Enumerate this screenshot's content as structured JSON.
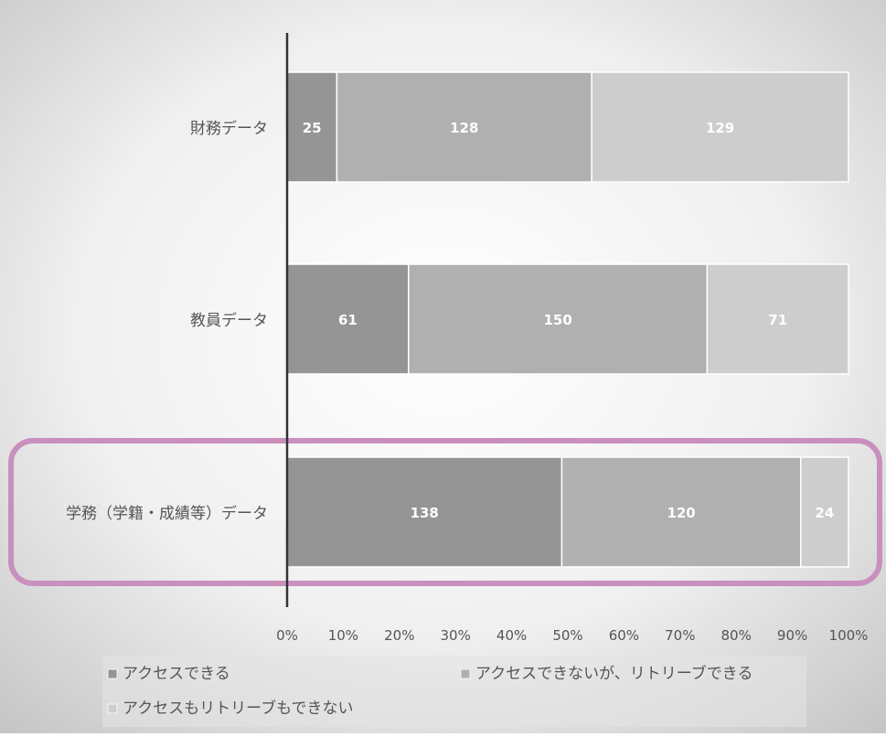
{
  "chart_data": {
    "type": "bar",
    "orientation": "horizontal",
    "stacking": "percent",
    "categories": [
      "財務データ",
      "教員データ",
      "学務（学籍・成績等）データ"
    ],
    "series": [
      {
        "name": "アクセスできる",
        "values": [
          25,
          61,
          138
        ],
        "color": "#959595"
      },
      {
        "name": "アクセスできないが、リトリーブできる",
        "values": [
          128,
          150,
          120
        ],
        "color": "#b0b0b0"
      },
      {
        "name": "アクセスもリトリーブもできない",
        "values": [
          129,
          71,
          24
        ],
        "color": "#cdcdcd"
      }
    ],
    "xlim": [
      0,
      100
    ],
    "xticks": [
      "0%",
      "10%",
      "20%",
      "30%",
      "40%",
      "50%",
      "60%",
      "70%",
      "80%",
      "90%",
      "100%"
    ],
    "legend_position": "bottom",
    "highlighted_category": "学務（学籍・成績等）データ",
    "highlight_color": "#c98fbd",
    "grid": false
  }
}
